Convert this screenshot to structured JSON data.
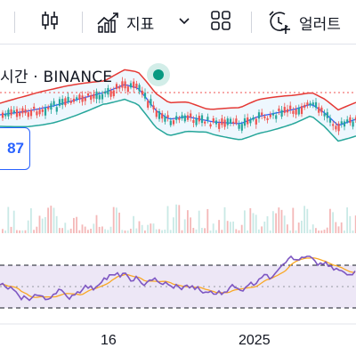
{
  "toolbar": {
    "indicators_label": "지표",
    "alerts_label": "얼러트"
  },
  "chart": {
    "symbol_partial": "시간 · BINANCE",
    "price_badge_partial": "87"
  },
  "time_axis": {
    "labels": [
      "16",
      "2025"
    ]
  },
  "colors": {
    "accent": "#2962ff",
    "bb_upper": "#e53935",
    "bb_lower": "#26a69a",
    "bb_basis": "#2962ff",
    "rsi_line": "#7e57c2",
    "rsi_ma": "#f9a825",
    "rsi_band": "#ede7f6",
    "candle_up": "#26a69a",
    "candle_down": "#ef5350",
    "marker": "#089981"
  },
  "icons": [
    "candlestick-icon",
    "indicators-icon",
    "chevron-down-icon",
    "layout-grid-icon",
    "alarm-clock-plus-icon"
  ]
}
